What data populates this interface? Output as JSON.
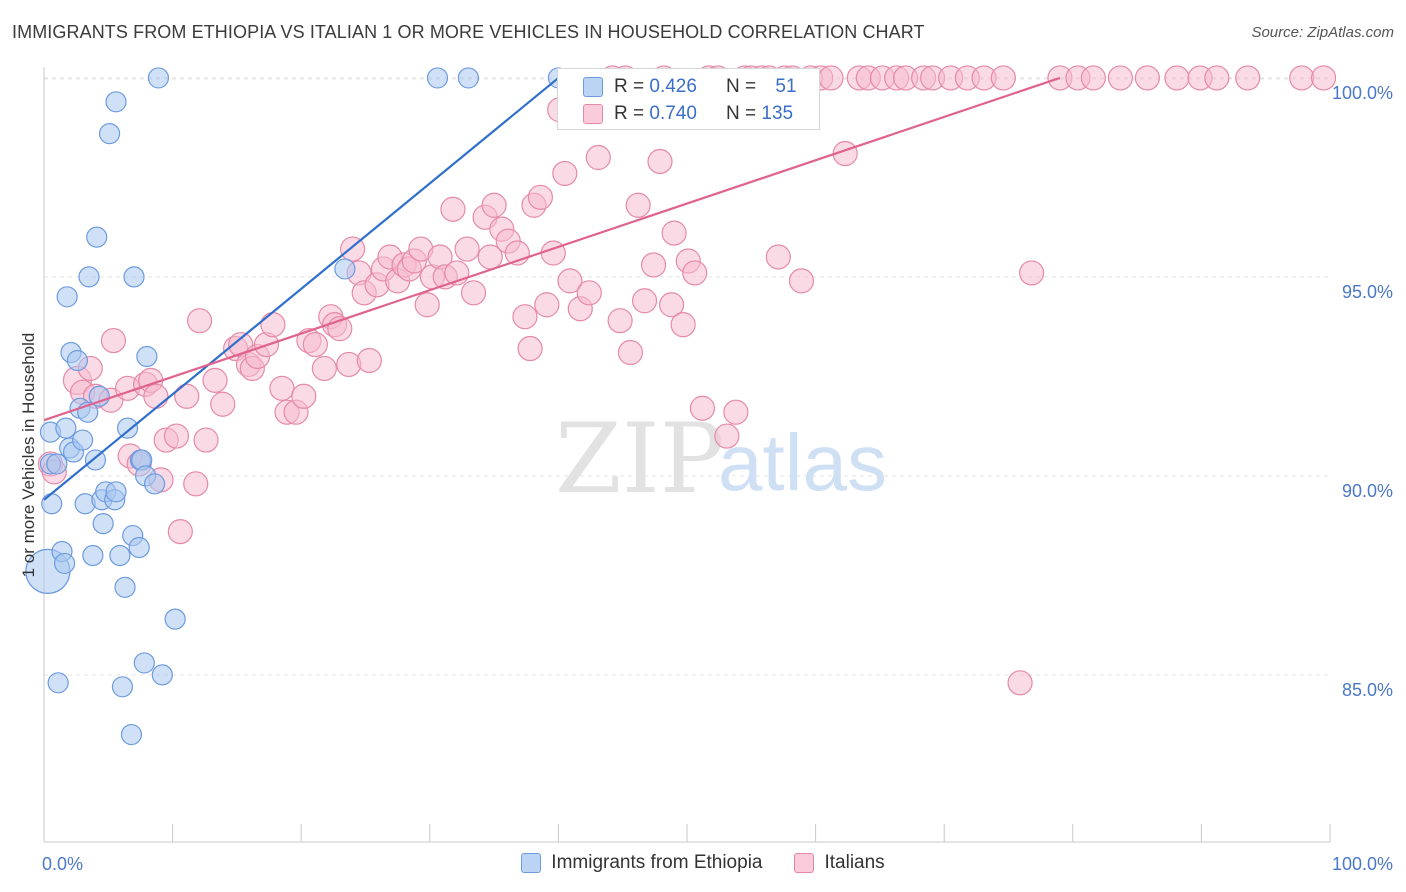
{
  "header": {
    "title": "IMMIGRANTS FROM ETHIOPIA VS ITALIAN 1 OR MORE VEHICLES IN HOUSEHOLD CORRELATION CHART",
    "source": "Source: ZipAtlas.com"
  },
  "watermark": {
    "zip": "ZIP",
    "atlas": "atlas"
  },
  "colors": {
    "blue_fill": "#aac8f0",
    "blue_stroke": "#6c9be0",
    "blue_line": "#2f6fcc",
    "pink_fill": "#f6bcd0",
    "pink_stroke": "#e68aa9",
    "pink_line": "#e0628f",
    "axis_label": "#4b78c8"
  },
  "stats": {
    "rows": [
      {
        "r_label": "R =",
        "r_value": "0.426",
        "n_label": "N =",
        "n_value": "51"
      },
      {
        "r_label": "R =",
        "r_value": "0.740",
        "n_label": "N =",
        "n_value": "135"
      }
    ]
  },
  "legend": {
    "items": [
      {
        "label": "Immigrants from Ethiopia"
      },
      {
        "label": "Italians"
      }
    ]
  },
  "chart_data": {
    "type": "scatter",
    "title": "IMMIGRANTS FROM ETHIOPIA VS ITALIAN 1 OR MORE VEHICLES IN HOUSEHOLD CORRELATION CHART",
    "xlabel": "",
    "ylabel": "1 or more Vehicles in Household",
    "xlim": [
      0,
      100
    ],
    "ylim": [
      80.8,
      100.4
    ],
    "x_tick_labels": [
      "0.0%",
      "100.0%"
    ],
    "y_ticks": [
      {
        "value": 85,
        "label": "85.0%"
      },
      {
        "value": 90,
        "label": "90.0%"
      },
      {
        "value": 95,
        "label": "95.0%"
      },
      {
        "value": 100,
        "label": "100.0%"
      }
    ],
    "grid": true,
    "legend_position": "bottom",
    "series": [
      {
        "name": "Immigrants from Ethiopia",
        "trend": {
          "x": [
            0.0,
            40.0
          ],
          "y": [
            89.4,
            100.0
          ]
        },
        "points": [
          [
            0.3,
            87.6,
            22
          ],
          [
            0.5,
            91.1,
            10
          ],
          [
            0.5,
            90.3,
            10
          ],
          [
            0.6,
            89.3,
            10
          ],
          [
            1.0,
            90.3,
            10
          ],
          [
            1.1,
            84.8,
            10
          ],
          [
            1.4,
            88.1,
            10
          ],
          [
            1.6,
            87.8,
            10
          ],
          [
            1.7,
            91.2,
            10
          ],
          [
            1.8,
            94.5,
            10
          ],
          [
            2.0,
            90.7,
            10
          ],
          [
            2.1,
            93.1,
            10
          ],
          [
            2.3,
            90.6,
            10
          ],
          [
            2.6,
            92.9,
            10
          ],
          [
            2.8,
            91.7,
            10
          ],
          [
            3.0,
            90.9,
            10
          ],
          [
            3.2,
            89.3,
            10
          ],
          [
            3.4,
            91.6,
            10
          ],
          [
            3.5,
            95.0,
            10
          ],
          [
            3.8,
            88.0,
            10
          ],
          [
            4.0,
            90.4,
            10
          ],
          [
            4.1,
            96.0,
            10
          ],
          [
            4.3,
            92.0,
            10
          ],
          [
            4.5,
            89.4,
            10
          ],
          [
            4.6,
            88.8,
            10
          ],
          [
            4.8,
            89.6,
            10
          ],
          [
            5.1,
            98.6,
            10
          ],
          [
            5.5,
            89.4,
            10
          ],
          [
            5.6,
            89.6,
            10
          ],
          [
            5.6,
            99.4,
            10
          ],
          [
            5.9,
            88.0,
            10
          ],
          [
            6.1,
            84.7,
            10
          ],
          [
            6.3,
            87.2,
            10
          ],
          [
            6.5,
            91.2,
            10
          ],
          [
            6.8,
            83.5,
            10
          ],
          [
            6.9,
            88.5,
            10
          ],
          [
            7.0,
            95.0,
            10
          ],
          [
            7.4,
            88.2,
            10
          ],
          [
            7.5,
            90.4,
            10
          ],
          [
            7.6,
            90.4,
            10
          ],
          [
            7.8,
            85.3,
            10
          ],
          [
            7.9,
            90.0,
            10
          ],
          [
            8.0,
            93.0,
            10
          ],
          [
            8.6,
            89.8,
            10
          ],
          [
            8.9,
            100.0,
            10
          ],
          [
            9.2,
            85.0,
            10
          ],
          [
            10.2,
            86.4,
            10
          ],
          [
            23.4,
            95.2,
            10
          ],
          [
            30.6,
            100.0,
            10
          ],
          [
            33.0,
            100.0,
            10
          ],
          [
            40.0,
            100.0,
            10
          ]
        ]
      },
      {
        "name": "Italians",
        "trend": {
          "x": [
            0.0,
            79.0
          ],
          "y": [
            91.4,
            100.0
          ]
        },
        "points": [
          [
            0.5,
            90.3,
            12
          ],
          [
            0.8,
            90.1,
            12
          ],
          [
            2.6,
            92.4,
            14
          ],
          [
            3.0,
            92.1,
            12
          ],
          [
            3.6,
            92.7,
            12
          ],
          [
            4.0,
            92.0,
            12
          ],
          [
            5.2,
            91.9,
            12
          ],
          [
            5.4,
            93.4,
            12
          ],
          [
            6.5,
            92.2,
            12
          ],
          [
            6.7,
            90.5,
            12
          ],
          [
            7.4,
            90.3,
            12
          ],
          [
            7.9,
            92.3,
            12
          ],
          [
            8.3,
            92.4,
            12
          ],
          [
            8.7,
            92.0,
            12
          ],
          [
            9.1,
            89.9,
            12
          ],
          [
            9.5,
            90.9,
            12
          ],
          [
            10.3,
            91.0,
            12
          ],
          [
            10.6,
            88.6,
            12
          ],
          [
            11.1,
            92.0,
            12
          ],
          [
            11.8,
            89.8,
            12
          ],
          [
            12.1,
            93.9,
            12
          ],
          [
            12.6,
            90.9,
            12
          ],
          [
            13.3,
            92.4,
            12
          ],
          [
            13.9,
            91.8,
            12
          ],
          [
            14.9,
            93.2,
            12
          ],
          [
            15.3,
            93.3,
            12
          ],
          [
            15.9,
            92.8,
            12
          ],
          [
            16.2,
            92.7,
            12
          ],
          [
            16.6,
            93.0,
            12
          ],
          [
            17.3,
            93.3,
            12
          ],
          [
            17.8,
            93.8,
            12
          ],
          [
            18.5,
            92.2,
            12
          ],
          [
            18.9,
            91.6,
            12
          ],
          [
            19.6,
            91.6,
            12
          ],
          [
            20.2,
            92.0,
            12
          ],
          [
            20.6,
            93.4,
            12
          ],
          [
            21.1,
            93.3,
            12
          ],
          [
            21.8,
            92.7,
            12
          ],
          [
            22.3,
            94.0,
            12
          ],
          [
            22.6,
            93.8,
            12
          ],
          [
            23.0,
            93.7,
            12
          ],
          [
            23.7,
            92.8,
            12
          ],
          [
            24.0,
            95.7,
            12
          ],
          [
            24.5,
            95.1,
            12
          ],
          [
            24.9,
            94.6,
            12
          ],
          [
            25.3,
            92.9,
            12
          ],
          [
            25.9,
            94.8,
            12
          ],
          [
            26.4,
            95.2,
            12
          ],
          [
            26.9,
            95.5,
            12
          ],
          [
            27.5,
            94.9,
            12
          ],
          [
            28.0,
            95.3,
            12
          ],
          [
            28.4,
            95.2,
            12
          ],
          [
            28.8,
            95.4,
            12
          ],
          [
            29.3,
            95.7,
            12
          ],
          [
            29.8,
            94.3,
            12
          ],
          [
            30.2,
            95.0,
            12
          ],
          [
            30.8,
            95.5,
            12
          ],
          [
            31.2,
            95.0,
            12
          ],
          [
            31.8,
            96.7,
            12
          ],
          [
            32.1,
            95.1,
            12
          ],
          [
            32.9,
            95.7,
            12
          ],
          [
            33.4,
            94.6,
            12
          ],
          [
            34.3,
            96.5,
            12
          ],
          [
            34.7,
            95.5,
            12
          ],
          [
            35.0,
            96.8,
            12
          ],
          [
            35.6,
            96.2,
            12
          ],
          [
            36.1,
            95.9,
            12
          ],
          [
            36.8,
            95.6,
            12
          ],
          [
            37.4,
            94.0,
            12
          ],
          [
            37.8,
            93.2,
            12
          ],
          [
            38.1,
            96.8,
            12
          ],
          [
            38.6,
            97.0,
            12
          ],
          [
            39.1,
            94.3,
            12
          ],
          [
            39.6,
            95.6,
            12
          ],
          [
            40.1,
            99.2,
            12
          ],
          [
            40.5,
            97.6,
            12
          ],
          [
            40.9,
            94.9,
            12
          ],
          [
            41.7,
            94.2,
            12
          ],
          [
            42.4,
            94.6,
            12
          ],
          [
            43.1,
            98.0,
            12
          ],
          [
            44.2,
            100.0,
            12
          ],
          [
            44.8,
            93.9,
            12
          ],
          [
            45.6,
            93.1,
            12
          ],
          [
            46.2,
            96.8,
            12
          ],
          [
            46.7,
            94.4,
            12
          ],
          [
            47.4,
            95.3,
            12
          ],
          [
            47.9,
            97.9,
            12
          ],
          [
            48.2,
            100.0,
            12
          ],
          [
            48.8,
            94.3,
            12
          ],
          [
            49.0,
            96.1,
            12
          ],
          [
            49.7,
            93.8,
            12
          ],
          [
            50.1,
            95.4,
            12
          ],
          [
            50.6,
            95.1,
            12
          ],
          [
            51.2,
            91.7,
            12
          ],
          [
            51.7,
            100.0,
            12
          ],
          [
            52.4,
            100.0,
            12
          ],
          [
            53.1,
            91.0,
            12
          ],
          [
            53.8,
            91.6,
            12
          ],
          [
            54.5,
            100.0,
            12
          ],
          [
            55.0,
            100.0,
            12
          ],
          [
            55.8,
            100.0,
            12
          ],
          [
            56.4,
            100.0,
            12
          ],
          [
            57.1,
            95.5,
            12
          ],
          [
            57.6,
            100.0,
            12
          ],
          [
            58.2,
            100.0,
            12
          ],
          [
            58.9,
            94.9,
            12
          ],
          [
            59.6,
            100.0,
            12
          ],
          [
            60.4,
            100.0,
            12
          ],
          [
            61.2,
            100.0,
            12
          ],
          [
            62.3,
            98.1,
            12
          ],
          [
            63.4,
            100.0,
            12
          ],
          [
            64.1,
            100.0,
            12
          ],
          [
            65.2,
            100.0,
            12
          ],
          [
            66.3,
            100.0,
            12
          ],
          [
            67.0,
            100.0,
            12
          ],
          [
            68.4,
            100.0,
            12
          ],
          [
            69.1,
            100.0,
            12
          ],
          [
            70.5,
            100.0,
            12
          ],
          [
            71.8,
            100.0,
            12
          ],
          [
            73.1,
            100.0,
            12
          ],
          [
            74.6,
            100.0,
            12
          ],
          [
            75.9,
            84.8,
            12
          ],
          [
            76.8,
            95.1,
            12
          ],
          [
            79.0,
            100.0,
            12
          ],
          [
            80.4,
            100.0,
            12
          ],
          [
            81.6,
            100.0,
            12
          ],
          [
            83.7,
            100.0,
            12
          ],
          [
            85.8,
            100.0,
            12
          ],
          [
            88.1,
            100.0,
            12
          ],
          [
            89.9,
            100.0,
            12
          ],
          [
            91.2,
            100.0,
            12
          ],
          [
            93.6,
            100.0,
            12
          ],
          [
            97.8,
            100.0,
            12
          ],
          [
            99.5,
            100.0,
            12
          ],
          [
            45.2,
            100.0,
            12
          ]
        ]
      }
    ]
  }
}
